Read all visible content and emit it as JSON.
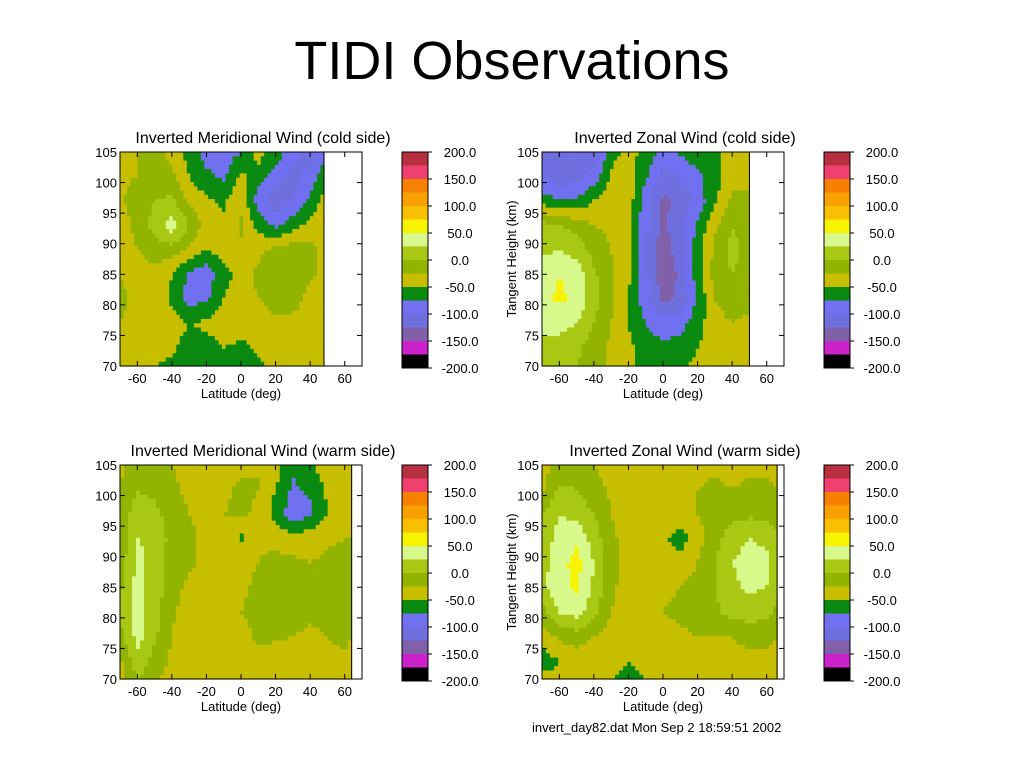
{
  "slide": {
    "title": "TIDI Observations",
    "footer": "invert_day82.dat Mon Sep  2 18:59:51 2002"
  },
  "colors": {
    "-200": "#000000",
    "-175": "#cc22cc",
    "-150": "#8060a8",
    "-125": "#6f6fe0",
    "-100": "#7070f0",
    "-75": "#0a8a10",
    "-50": "#c8be00",
    "-25": "#92b400",
    "0": "#a8c814",
    "25": "#d8f88c",
    "50": "#f8f400",
    "75": "#f8c000",
    "100": "#f8a000",
    "125": "#f88000",
    "150": "#f04070",
    "175": "#b83040"
  },
  "chart_data": [
    {
      "type": "heatmap",
      "title": "Inverted Meridional Wind (cold side)",
      "xlabel": "Latitude (deg)",
      "ylabel": "",
      "xlim": [
        -70,
        70
      ],
      "ylim": [
        70,
        105
      ],
      "xticks": [
        -60,
        -40,
        -20,
        0,
        20,
        40,
        60
      ],
      "yticks": [
        70,
        75,
        80,
        85,
        90,
        95,
        100,
        105
      ],
      "data_xmax": 48,
      "colorbar": {
        "labels": [
          "200.0",
          "150.0",
          "100.0",
          "50.0",
          "0.0",
          "-50.0",
          "-100.0",
          "-150.0",
          "-200.0"
        ],
        "range": [
          -200,
          200
        ]
      },
      "x": [
        -70,
        -60,
        -50,
        -40,
        -30,
        -20,
        -10,
        0,
        10,
        20,
        30,
        40,
        48
      ],
      "y": [
        105,
        101,
        97,
        93,
        89,
        85,
        81,
        77,
        73,
        70
      ],
      "values": [
        [
          -30,
          -25,
          -20,
          -30,
          -60,
          -85,
          -90,
          -75,
          -40,
          -60,
          -90,
          -120,
          -80
        ],
        [
          -30,
          -25,
          -15,
          -20,
          -50,
          -70,
          -80,
          -45,
          -60,
          -90,
          -110,
          -90,
          -60
        ],
        [
          -30,
          -10,
          0,
          5,
          -30,
          -45,
          -55,
          -30,
          -90,
          -120,
          -100,
          -70,
          -40
        ],
        [
          -35,
          -20,
          10,
          40,
          0,
          -35,
          -45,
          -20,
          -60,
          -80,
          -60,
          -40,
          -30
        ],
        [
          -30,
          -25,
          -15,
          -10,
          -30,
          -50,
          -40,
          -30,
          -30,
          -20,
          -10,
          -15,
          -35
        ],
        [
          -25,
          -35,
          -30,
          -50,
          -80,
          -90,
          -60,
          -40,
          -20,
          -10,
          0,
          -20,
          -30
        ],
        [
          -20,
          -30,
          -35,
          -55,
          -85,
          -80,
          -50,
          -30,
          -25,
          -15,
          -10,
          -35,
          -30
        ],
        [
          -25,
          -30,
          -40,
          -40,
          -50,
          -45,
          -35,
          -40,
          -40,
          -30,
          -35,
          -40,
          -30
        ],
        [
          -35,
          -45,
          -40,
          -45,
          -60,
          -60,
          -50,
          -55,
          -45,
          -40,
          -45,
          -40,
          -35
        ],
        [
          -40,
          -45,
          -50,
          -55,
          -60,
          -60,
          -55,
          -60,
          -55,
          -45,
          -45,
          -40,
          -40
        ]
      ]
    },
    {
      "type": "heatmap",
      "title": "Inverted Zonal Wind (cold side)",
      "xlabel": "Latitude (deg)",
      "ylabel": "Tangent Height (km)",
      "xlim": [
        -70,
        70
      ],
      "ylim": [
        70,
        105
      ],
      "xticks": [
        -60,
        -40,
        -20,
        0,
        20,
        40,
        60
      ],
      "yticks": [
        70,
        75,
        80,
        85,
        90,
        95,
        100,
        105
      ],
      "data_xmax": 50,
      "colorbar": {
        "labels": [
          "200.0",
          "150.0",
          "100.0",
          "50.0",
          "0.0",
          "-50.0",
          "-100.0",
          "-150.0",
          "-200.0"
        ],
        "range": [
          -200,
          200
        ]
      },
      "x": [
        -70,
        -60,
        -50,
        -40,
        -30,
        -20,
        -10,
        0,
        10,
        20,
        30,
        40,
        50
      ],
      "y": [
        105,
        101,
        97,
        93,
        89,
        85,
        81,
        77,
        73,
        70
      ],
      "values": [
        [
          -110,
          -120,
          -125,
          -120,
          -60,
          -40,
          -60,
          -80,
          -70,
          -60,
          -55,
          -40,
          -30
        ],
        [
          -100,
          -115,
          -110,
          -90,
          -45,
          -35,
          -70,
          -110,
          -100,
          -80,
          -60,
          -35,
          -30
        ],
        [
          -60,
          -75,
          -70,
          -50,
          -30,
          -35,
          -90,
          -130,
          -120,
          -90,
          -55,
          -20,
          -20
        ],
        [
          10,
          0,
          -10,
          -25,
          -30,
          -40,
          -95,
          -130,
          -110,
          -70,
          -30,
          0,
          -15
        ],
        [
          20,
          25,
          15,
          -10,
          -25,
          -45,
          -100,
          -140,
          -110,
          -60,
          -20,
          10,
          -10
        ],
        [
          35,
          50,
          40,
          5,
          -20,
          -45,
          -95,
          -145,
          -120,
          -60,
          -15,
          0,
          -15
        ],
        [
          40,
          55,
          45,
          10,
          -20,
          -50,
          -90,
          -130,
          -120,
          -70,
          -25,
          -10,
          -20
        ],
        [
          30,
          35,
          25,
          0,
          -25,
          -50,
          -75,
          -90,
          -85,
          -60,
          -35,
          -25,
          -30
        ],
        [
          20,
          15,
          5,
          -10,
          -30,
          -45,
          -60,
          -70,
          -65,
          -50,
          -40,
          -35,
          -35
        ],
        [
          10,
          5,
          0,
          -15,
          -30,
          -45,
          -55,
          -60,
          -55,
          -45,
          -40,
          -35,
          -35
        ]
      ]
    },
    {
      "type": "heatmap",
      "title": "Inverted Meridional Wind (warm side)",
      "xlabel": "Latitude (deg)",
      "ylabel": "",
      "xlim": [
        -70,
        70
      ],
      "ylim": [
        70,
        105
      ],
      "xticks": [
        -60,
        -40,
        -20,
        0,
        20,
        40,
        60
      ],
      "yticks": [
        70,
        75,
        80,
        85,
        90,
        95,
        100,
        105
      ],
      "data_xmax": 64,
      "colorbar": {
        "labels": [
          "200.0",
          "150.0",
          "100.0",
          "50.0",
          "0.0",
          "-50.0",
          "-100.0",
          "-150.0",
          "-200.0"
        ],
        "range": [
          -200,
          200
        ]
      },
      "x": [
        -70,
        -60,
        -50,
        -40,
        -30,
        -20,
        -10,
        0,
        10,
        20,
        30,
        40,
        50,
        60,
        64
      ],
      "y": [
        105,
        101,
        97,
        93,
        89,
        85,
        81,
        77,
        73,
        70
      ],
      "values": [
        [
          -30,
          -15,
          -10,
          -25,
          -35,
          -40,
          -35,
          -30,
          -25,
          -40,
          -70,
          -55,
          -35,
          -30,
          -30
        ],
        [
          -25,
          0,
          -10,
          -20,
          -30,
          -35,
          -30,
          -20,
          -25,
          -50,
          -80,
          -70,
          -45,
          -30,
          -30
        ],
        [
          -20,
          15,
          10,
          -15,
          -25,
          -30,
          -25,
          -20,
          -30,
          -60,
          -90,
          -80,
          -50,
          -30,
          -30
        ],
        [
          -15,
          25,
          20,
          -10,
          -20,
          -30,
          -25,
          -55,
          -30,
          -35,
          -40,
          -35,
          -30,
          -25,
          -25
        ],
        [
          -15,
          30,
          20,
          -15,
          -20,
          -30,
          -25,
          -30,
          -25,
          -15,
          -20,
          -25,
          -20,
          -10,
          -15
        ],
        [
          -5,
          35,
          15,
          -15,
          -30,
          -40,
          -35,
          -30,
          -20,
          -20,
          -25,
          -20,
          -10,
          -5,
          -10
        ],
        [
          5,
          40,
          10,
          -20,
          -40,
          -45,
          -40,
          -25,
          -15,
          -10,
          -15,
          -20,
          -15,
          -10,
          -15
        ],
        [
          -10,
          35,
          5,
          -25,
          -45,
          -50,
          -45,
          -35,
          -20,
          -20,
          -25,
          -30,
          -25,
          -20,
          -25
        ],
        [
          -30,
          20,
          -10,
          -30,
          -40,
          -45,
          -40,
          -35,
          -35,
          -40,
          -40,
          -35,
          -30,
          -30,
          -30
        ],
        [
          -40,
          0,
          -20,
          -35,
          -40,
          -45,
          -40,
          -40,
          -40,
          -45,
          -40,
          -35,
          -35,
          -35,
          -35
        ]
      ]
    },
    {
      "type": "heatmap",
      "title": "Inverted Zonal Wind (warm side)",
      "xlabel": "Latitude (deg)",
      "ylabel": "Tangent Height (km)",
      "xlim": [
        -70,
        70
      ],
      "ylim": [
        70,
        105
      ],
      "xticks": [
        -60,
        -40,
        -20,
        0,
        20,
        40,
        60
      ],
      "yticks": [
        70,
        75,
        80,
        85,
        90,
        95,
        100,
        105
      ],
      "data_xmax": 66,
      "colorbar": {
        "labels": [
          "200.0",
          "150.0",
          "100.0",
          "50.0",
          "0.0",
          "-50.0",
          "-100.0",
          "-150.0",
          "-200.0"
        ],
        "range": [
          -200,
          200
        ]
      },
      "x": [
        -70,
        -60,
        -50,
        -40,
        -30,
        -20,
        -10,
        0,
        10,
        20,
        30,
        40,
        50,
        60,
        66
      ],
      "y": [
        105,
        101,
        97,
        93,
        89,
        85,
        81,
        77,
        73,
        70
      ],
      "values": [
        [
          -35,
          -20,
          -15,
          -25,
          -35,
          -40,
          -40,
          -35,
          -35,
          -30,
          -30,
          -35,
          -30,
          -30,
          -30
        ],
        [
          -30,
          5,
          0,
          -15,
          -30,
          -40,
          -35,
          -30,
          -30,
          -25,
          -20,
          -25,
          -20,
          -20,
          -25
        ],
        [
          0,
          25,
          15,
          0,
          -25,
          -35,
          -35,
          -30,
          -40,
          -25,
          -15,
          -10,
          -5,
          -10,
          -15
        ],
        [
          10,
          35,
          45,
          15,
          -20,
          -35,
          -40,
          -45,
          -60,
          -35,
          -10,
          15,
          25,
          20,
          5
        ],
        [
          15,
          40,
          60,
          25,
          -15,
          -35,
          -40,
          -40,
          -45,
          -25,
          0,
          25,
          35,
          30,
          10
        ],
        [
          20,
          40,
          55,
          20,
          -20,
          -35,
          -35,
          -30,
          -25,
          -15,
          0,
          20,
          30,
          25,
          5
        ],
        [
          -10,
          30,
          35,
          10,
          -25,
          -35,
          -30,
          -25,
          -20,
          -10,
          -5,
          10,
          15,
          10,
          -5
        ],
        [
          -40,
          -20,
          -10,
          -25,
          -35,
          -40,
          -35,
          -30,
          -30,
          -25,
          -25,
          -25,
          -20,
          -20,
          -25
        ],
        [
          -60,
          -50,
          -40,
          -45,
          -45,
          -50,
          -45,
          -40,
          -40,
          -40,
          -35,
          -30,
          -30,
          -30,
          -30
        ],
        [
          -45,
          -45,
          -40,
          -45,
          -50,
          -55,
          -50,
          -45,
          -45,
          -45,
          -40,
          -35,
          -35,
          -35,
          -35
        ]
      ]
    }
  ]
}
